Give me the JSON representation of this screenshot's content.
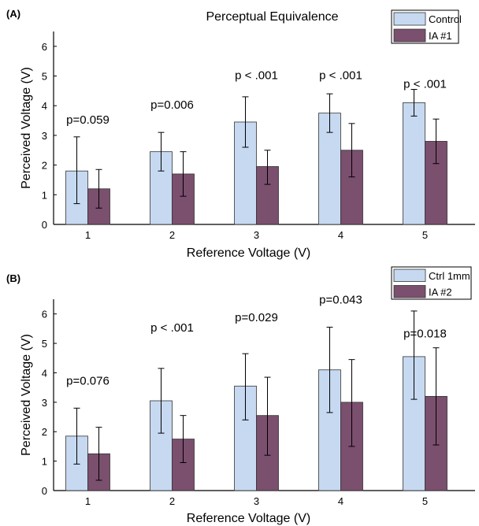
{
  "chart_data": [
    {
      "type": "bar",
      "panel_label": "(A)",
      "title": "Perceptual Equivalence",
      "xlabel": "Reference Voltage (V)",
      "ylabel": "Perceived Voltage (V)",
      "ylim": [
        0,
        6.5
      ],
      "yticks": [
        "0",
        "1",
        "2",
        "3",
        "4",
        "5",
        "6"
      ],
      "categories": [
        "1",
        "2",
        "3",
        "4",
        "5"
      ],
      "legend_position": "top-right",
      "grid": false,
      "series": [
        {
          "name": "Control",
          "color": "#c6d9f1",
          "values": [
            1.8,
            2.45,
            3.45,
            3.75,
            4.1
          ],
          "err_low": [
            0.7,
            1.8,
            2.6,
            3.1,
            3.65
          ],
          "err_high": [
            2.95,
            3.1,
            4.3,
            4.4,
            4.55
          ]
        },
        {
          "name": "IA #1",
          "color": "#7b4f6e",
          "values": [
            1.2,
            1.7,
            1.95,
            2.5,
            2.8
          ],
          "err_low": [
            0.55,
            0.95,
            1.35,
            1.6,
            2.05
          ],
          "err_high": [
            1.85,
            2.45,
            2.5,
            3.4,
            3.55
          ]
        }
      ],
      "annotations": [
        {
          "category": "1",
          "text": "p=0.059",
          "y": 3.4
        },
        {
          "category": "2",
          "text": "p=0.006",
          "y": 3.9
        },
        {
          "category": "3",
          "text": "p < .001",
          "y": 4.9
        },
        {
          "category": "4",
          "text": "p < .001",
          "y": 4.9
        },
        {
          "category": "5",
          "text": "p < .001",
          "y": 4.6
        }
      ]
    },
    {
      "type": "bar",
      "panel_label": "(B)",
      "title": "",
      "xlabel": "Reference Voltage (V)",
      "ylabel": "Perceived Voltage (V)",
      "ylim": [
        0,
        6.5
      ],
      "yticks": [
        "0",
        "1",
        "2",
        "3",
        "4",
        "5",
        "6"
      ],
      "categories": [
        "1",
        "2",
        "3",
        "4",
        "5"
      ],
      "legend_position": "top-right",
      "grid": false,
      "series": [
        {
          "name": "Ctrl 1mm",
          "color": "#c6d9f1",
          "values": [
            1.85,
            3.05,
            3.55,
            4.1,
            4.55
          ],
          "err_low": [
            0.9,
            1.95,
            2.4,
            2.65,
            3.1
          ],
          "err_high": [
            2.8,
            4.15,
            4.65,
            5.55,
            6.1
          ]
        },
        {
          "name": "IA #2",
          "color": "#7b4f6e",
          "values": [
            1.25,
            1.75,
            2.55,
            3.0,
            3.2
          ],
          "err_low": [
            0.35,
            0.95,
            1.2,
            1.5,
            1.55
          ],
          "err_high": [
            2.15,
            2.55,
            3.85,
            4.45,
            4.85
          ]
        }
      ],
      "annotations": [
        {
          "category": "1",
          "text": "p=0.076",
          "y": 3.6
        },
        {
          "category": "2",
          "text": "p < .001",
          "y": 5.4
        },
        {
          "category": "3",
          "text": "p=0.029",
          "y": 5.75
        },
        {
          "category": "4",
          "text": "p=0.043",
          "y": 6.35
        },
        {
          "category": "5",
          "text": "p=0.018",
          "y": 5.2
        }
      ]
    }
  ]
}
